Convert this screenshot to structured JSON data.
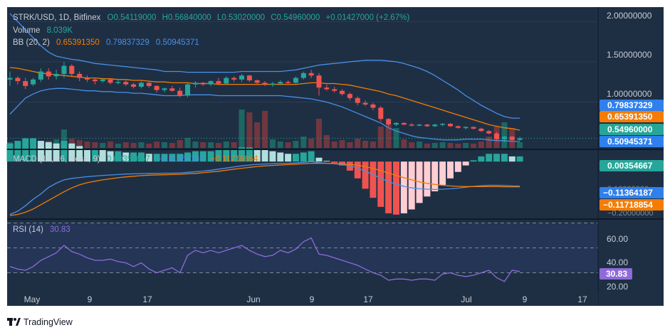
{
  "colors": {
    "bg": "#1e2f44",
    "up": "#26a69a",
    "down": "#ef5350",
    "bb_basis": "#f57c00",
    "bb_band": "#4a8fe6",
    "macd": "#4a8fe6",
    "signal": "#f57c00",
    "rsi": "#8e6bd8",
    "rsi_band": "#2a3a66",
    "text": "#c8ccd4",
    "axis_text": "#c8ccd4"
  },
  "header": {
    "symbol": "STRK/USD, 1D, Bitfinex",
    "open": "O0.54119000",
    "high": "H0.56840000",
    "low": "L0.53020000",
    "close": "C0.54960000",
    "change": "+0.01427000 (+2.67%)",
    "volume_label": "Volume",
    "volume_value": "8.039K",
    "bb_label": "BB (20, 2)",
    "bb_basis": "0.65391350",
    "bb_upper": "0.79837329",
    "bb_lower": "0.50945371"
  },
  "macd_header": {
    "label": "MACD (12, 26, close, 9)",
    "hist": "0.00354667",
    "macd": "−0.11364187",
    "signal": "−0.11718854"
  },
  "rsi_header": {
    "label": "RSI (14)",
    "value": "30.83"
  },
  "price_axis": {
    "ticks": [
      "2.00000000",
      "1.50000000",
      "1.00000000"
    ],
    "tags": [
      {
        "text": "0.79837329",
        "color": "#2f80ed"
      },
      {
        "text": "0.65391350",
        "color": "#f57c00"
      },
      {
        "text": "0.54960000",
        "color": "#26a69a"
      },
      {
        "text": "0.50945371",
        "color": "#2f80ed"
      }
    ]
  },
  "macd_axis": {
    "tags": [
      {
        "text": "0.00354667",
        "color": "#26a69a"
      },
      {
        "text": "−0.11364187",
        "color": "#2f80ed"
      },
      {
        "text": "−0.11718854",
        "color": "#f57c00"
      }
    ],
    "faint": [
      "0.10000000",
      "−0.20000000"
    ]
  },
  "rsi_axis": {
    "ticks": [
      "60.00",
      "40.00",
      "20.00"
    ],
    "tag": {
      "text": "30.83",
      "color": "#8e6bd8"
    }
  },
  "time_axis": [
    "May",
    "9",
    "17",
    "Jun",
    "9",
    "17",
    "Jul",
    "9",
    "17"
  ],
  "footer": {
    "brand": "TradingView"
  },
  "chart_data": {
    "type": "candlestick",
    "title": "STRK/USD, 1D, Bitfinex",
    "price_range": [
      0.43,
      2.18
    ],
    "candles": [
      [
        1.28,
        1.38,
        1.2,
        1.3
      ],
      [
        1.3,
        1.32,
        1.22,
        1.26
      ],
      [
        1.26,
        1.3,
        1.16,
        1.2
      ],
      [
        1.22,
        1.3,
        1.2,
        1.28
      ],
      [
        1.28,
        1.42,
        1.25,
        1.38
      ],
      [
        1.38,
        1.42,
        1.28,
        1.32
      ],
      [
        1.32,
        1.4,
        1.28,
        1.35
      ],
      [
        1.35,
        1.5,
        1.3,
        1.45
      ],
      [
        1.45,
        1.47,
        1.32,
        1.35
      ],
      [
        1.35,
        1.38,
        1.26,
        1.3
      ],
      [
        1.3,
        1.33,
        1.25,
        1.28
      ],
      [
        1.28,
        1.3,
        1.22,
        1.26
      ],
      [
        1.26,
        1.3,
        1.24,
        1.28
      ],
      [
        1.28,
        1.29,
        1.22,
        1.24
      ],
      [
        1.24,
        1.28,
        1.22,
        1.25
      ],
      [
        1.25,
        1.27,
        1.2,
        1.22
      ],
      [
        1.22,
        1.24,
        1.17,
        1.19
      ],
      [
        1.19,
        1.26,
        1.17,
        1.24
      ],
      [
        1.24,
        1.25,
        1.18,
        1.2
      ],
      [
        1.2,
        1.21,
        1.12,
        1.15
      ],
      [
        1.15,
        1.18,
        1.12,
        1.17
      ],
      [
        1.17,
        1.2,
        1.13,
        1.14
      ],
      [
        1.14,
        1.18,
        1.06,
        1.08
      ],
      [
        1.08,
        1.24,
        1.06,
        1.22
      ],
      [
        1.22,
        1.26,
        1.18,
        1.24
      ],
      [
        1.24,
        1.25,
        1.2,
        1.22
      ],
      [
        1.22,
        1.27,
        1.2,
        1.26
      ],
      [
        1.26,
        1.3,
        1.21,
        1.23
      ],
      [
        1.23,
        1.32,
        1.22,
        1.3
      ],
      [
        1.3,
        1.32,
        1.25,
        1.28
      ],
      [
        1.28,
        1.35,
        1.25,
        1.33
      ],
      [
        1.33,
        1.34,
        1.25,
        1.27
      ],
      [
        1.27,
        1.28,
        1.22,
        1.24
      ],
      [
        1.24,
        1.26,
        1.2,
        1.22
      ],
      [
        1.22,
        1.25,
        1.19,
        1.23
      ],
      [
        1.23,
        1.27,
        1.21,
        1.25
      ],
      [
        1.25,
        1.27,
        1.22,
        1.24
      ],
      [
        1.24,
        1.32,
        1.23,
        1.3
      ],
      [
        1.3,
        1.38,
        1.28,
        1.36
      ],
      [
        1.36,
        1.4,
        1.3,
        1.33
      ],
      [
        1.33,
        1.36,
        1.08,
        1.18
      ],
      [
        1.18,
        1.22,
        1.14,
        1.16
      ],
      [
        1.16,
        1.19,
        1.12,
        1.14
      ],
      [
        1.14,
        1.16,
        1.08,
        1.1
      ],
      [
        1.1,
        1.12,
        1.02,
        1.05
      ],
      [
        1.05,
        1.07,
        0.96,
        0.99
      ],
      [
        0.99,
        1.02,
        0.95,
        0.97
      ],
      [
        0.97,
        0.99,
        0.9,
        0.93
      ],
      [
        0.93,
        0.95,
        0.76,
        0.79
      ],
      [
        0.79,
        0.8,
        0.7,
        0.72
      ],
      [
        0.72,
        0.75,
        0.7,
        0.74
      ],
      [
        0.74,
        0.75,
        0.71,
        0.72
      ],
      [
        0.72,
        0.74,
        0.7,
        0.71
      ],
      [
        0.71,
        0.73,
        0.7,
        0.72
      ],
      [
        0.72,
        0.73,
        0.69,
        0.7
      ],
      [
        0.7,
        0.73,
        0.69,
        0.72
      ],
      [
        0.72,
        0.74,
        0.7,
        0.73
      ],
      [
        0.73,
        0.74,
        0.69,
        0.7
      ],
      [
        0.7,
        0.71,
        0.67,
        0.68
      ],
      [
        0.68,
        0.7,
        0.66,
        0.69
      ],
      [
        0.69,
        0.7,
        0.66,
        0.67
      ],
      [
        0.67,
        0.68,
        0.63,
        0.64
      ],
      [
        0.64,
        0.65,
        0.6,
        0.61
      ],
      [
        0.61,
        0.63,
        0.52,
        0.54
      ],
      [
        0.54,
        0.58,
        0.5,
        0.57
      ],
      [
        0.57,
        0.58,
        0.52,
        0.53
      ],
      [
        0.53,
        0.57,
        0.52,
        0.55
      ]
    ],
    "bb_basis": [
      1.43,
      1.42,
      1.4,
      1.38,
      1.36,
      1.35,
      1.34,
      1.33,
      1.32,
      1.31,
      1.3,
      1.3,
      1.29,
      1.29,
      1.28,
      1.28,
      1.27,
      1.27,
      1.26,
      1.25,
      1.25,
      1.24,
      1.24,
      1.24,
      1.23,
      1.23,
      1.23,
      1.22,
      1.22,
      1.22,
      1.22,
      1.22,
      1.22,
      1.22,
      1.22,
      1.22,
      1.22,
      1.22,
      1.23,
      1.24,
      1.24,
      1.23,
      1.23,
      1.22,
      1.21,
      1.19,
      1.17,
      1.15,
      1.13,
      1.1,
      1.08,
      1.05,
      1.02,
      0.99,
      0.96,
      0.93,
      0.9,
      0.87,
      0.84,
      0.81,
      0.78,
      0.75,
      0.72,
      0.7,
      0.68,
      0.67,
      0.65
    ],
    "bb_upper": [
      2.1,
      2.0,
      1.9,
      1.8,
      1.7,
      1.62,
      1.57,
      1.55,
      1.53,
      1.52,
      1.5,
      1.48,
      1.47,
      1.46,
      1.45,
      1.44,
      1.43,
      1.42,
      1.41,
      1.4,
      1.38,
      1.38,
      1.38,
      1.37,
      1.37,
      1.37,
      1.37,
      1.37,
      1.37,
      1.37,
      1.38,
      1.38,
      1.38,
      1.38,
      1.38,
      1.38,
      1.39,
      1.4,
      1.42,
      1.44,
      1.46,
      1.47,
      1.48,
      1.49,
      1.5,
      1.51,
      1.52,
      1.52,
      1.52,
      1.51,
      1.5,
      1.48,
      1.45,
      1.42,
      1.38,
      1.33,
      1.27,
      1.21,
      1.15,
      1.08,
      1.02,
      0.96,
      0.91,
      0.86,
      0.82,
      0.8,
      0.8
    ],
    "bb_lower": [
      0.85,
      0.95,
      1.05,
      1.1,
      1.14,
      1.16,
      1.17,
      1.17,
      1.16,
      1.15,
      1.14,
      1.14,
      1.13,
      1.13,
      1.12,
      1.12,
      1.11,
      1.11,
      1.1,
      1.09,
      1.08,
      1.08,
      1.08,
      1.09,
      1.09,
      1.09,
      1.09,
      1.08,
      1.08,
      1.08,
      1.08,
      1.08,
      1.08,
      1.08,
      1.08,
      1.08,
      1.07,
      1.06,
      1.05,
      1.04,
      1.02,
      1.0,
      0.97,
      0.94,
      0.9,
      0.86,
      0.82,
      0.78,
      0.74,
      0.68,
      0.64,
      0.61,
      0.58,
      0.56,
      0.55,
      0.54,
      0.53,
      0.53,
      0.53,
      0.54,
      0.54,
      0.54,
      0.53,
      0.52,
      0.52,
      0.51,
      0.51
    ],
    "volume": [
      0.8,
      0.6,
      0.7,
      0.9,
      0.8,
      1.0,
      1.2,
      2.6,
      1.3,
      1.1,
      0.9,
      0.8,
      0.7,
      0.9,
      0.6,
      0.8,
      0.7,
      0.8,
      0.6,
      0.9,
      0.8,
      0.7,
      1.1,
      1.4,
      0.9,
      0.8,
      0.8,
      0.7,
      0.9,
      0.8,
      5.4,
      5.0,
      3.6,
      5.2,
      1.2,
      0.9,
      0.8,
      1.0,
      1.6,
      1.3,
      4.1,
      1.8,
      0.9,
      1.1,
      0.8,
      1.3,
      1.0,
      0.9,
      3.0,
      3.2,
      2.8,
      1.2,
      0.8,
      0.9,
      0.6,
      0.7,
      0.8,
      0.7,
      0.6,
      0.7,
      0.6,
      0.9,
      1.6,
      3.0,
      3.6,
      2.8,
      0.8
    ],
    "macd_range": [
      -0.26,
      0.05
    ],
    "macd": [
      -0.245,
      -0.23,
      -0.205,
      -0.175,
      -0.15,
      -0.12,
      -0.1,
      -0.085,
      -0.078,
      -0.074,
      -0.07,
      -0.067,
      -0.064,
      -0.062,
      -0.06,
      -0.058,
      -0.057,
      -0.056,
      -0.055,
      -0.055,
      -0.054,
      -0.054,
      -0.053,
      -0.05,
      -0.047,
      -0.044,
      -0.04,
      -0.035,
      -0.03,
      -0.025,
      -0.02,
      -0.016,
      -0.013,
      -0.011,
      -0.01,
      -0.009,
      -0.008,
      -0.006,
      -0.003,
      0.0,
      -0.005,
      -0.008,
      -0.01,
      -0.014,
      -0.02,
      -0.03,
      -0.045,
      -0.06,
      -0.077,
      -0.093,
      -0.105,
      -0.115,
      -0.122,
      -0.126,
      -0.128,
      -0.129,
      -0.128,
      -0.126,
      -0.123,
      -0.119,
      -0.115,
      -0.112,
      -0.11,
      -0.11,
      -0.111,
      -0.113,
      -0.114
    ],
    "signal": [
      -0.25,
      -0.245,
      -0.235,
      -0.22,
      -0.2,
      -0.18,
      -0.16,
      -0.14,
      -0.122,
      -0.108,
      -0.098,
      -0.091,
      -0.085,
      -0.08,
      -0.075,
      -0.071,
      -0.068,
      -0.065,
      -0.063,
      -0.062,
      -0.061,
      -0.06,
      -0.059,
      -0.057,
      -0.055,
      -0.052,
      -0.048,
      -0.045,
      -0.04,
      -0.035,
      -0.031,
      -0.027,
      -0.023,
      -0.02,
      -0.018,
      -0.016,
      -0.014,
      -0.012,
      -0.01,
      -0.008,
      -0.008,
      -0.008,
      -0.009,
      -0.011,
      -0.013,
      -0.017,
      -0.024,
      -0.032,
      -0.042,
      -0.053,
      -0.064,
      -0.075,
      -0.085,
      -0.094,
      -0.101,
      -0.106,
      -0.11,
      -0.113,
      -0.115,
      -0.116,
      -0.116,
      -0.116,
      -0.116,
      -0.116,
      -0.117,
      -0.117,
      -0.117
    ],
    "histogram": [
      0.014,
      0.016,
      0.018,
      0.018,
      0.016,
      0.015,
      0.014,
      0.016,
      0.014,
      0.012,
      0.01,
      0.01,
      0.009,
      0.008,
      0.008,
      0.007,
      0.007,
      0.007,
      0.006,
      0.006,
      0.006,
      0.006,
      0.006,
      0.007,
      0.008,
      0.008,
      0.008,
      0.009,
      0.01,
      0.01,
      0.011,
      0.011,
      0.01,
      0.009,
      0.008,
      0.007,
      0.006,
      0.006,
      0.007,
      0.008,
      0.003,
      0.0,
      -0.001,
      -0.003,
      -0.007,
      -0.013,
      -0.021,
      -0.028,
      -0.035,
      -0.04,
      -0.041,
      -0.04,
      -0.037,
      -0.032,
      -0.027,
      -0.023,
      -0.018,
      -0.013,
      -0.008,
      -0.003,
      0.001,
      0.004,
      0.006,
      0.006,
      0.006,
      0.004,
      0.004
    ],
    "rsi_range": [
      16,
      72
    ],
    "rsi_levels": [
      70,
      50,
      30
    ],
    "rsi": [
      35,
      33,
      32,
      35,
      40,
      43,
      46,
      52,
      47,
      45,
      42,
      40,
      40,
      41,
      39,
      38,
      35,
      38,
      33,
      30,
      32,
      34,
      30,
      44,
      48,
      46,
      48,
      46,
      48,
      50,
      52,
      48,
      45,
      43,
      44,
      48,
      46,
      49,
      55,
      58,
      45,
      44,
      42,
      40,
      38,
      36,
      33,
      30,
      28,
      24,
      25,
      25,
      24,
      25,
      25,
      24,
      29,
      30,
      28,
      27,
      28,
      30,
      32,
      26,
      23,
      32,
      31
    ]
  }
}
